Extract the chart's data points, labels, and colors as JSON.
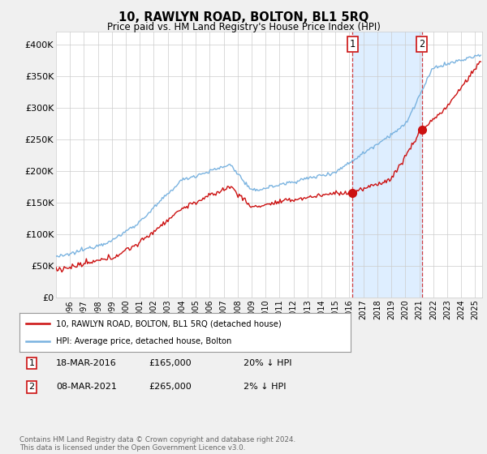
{
  "title": "10, RAWLYN ROAD, BOLTON, BL1 5RQ",
  "subtitle": "Price paid vs. HM Land Registry's House Price Index (HPI)",
  "ylabel_ticks": [
    "£0",
    "£50K",
    "£100K",
    "£150K",
    "£200K",
    "£250K",
    "£300K",
    "£350K",
    "£400K"
  ],
  "ylim": [
    0,
    420000
  ],
  "xlim_start": 1995.0,
  "xlim_end": 2025.5,
  "hpi_color": "#7ab3e0",
  "price_color": "#cc1111",
  "shade_color": "#deeeff",
  "marker1_date": 2016.21,
  "marker1_price": 165000,
  "marker2_date": 2021.18,
  "marker2_price": 265000,
  "legend_label1": "10, RAWLYN ROAD, BOLTON, BL1 5RQ (detached house)",
  "legend_label2": "HPI: Average price, detached house, Bolton",
  "footer": "Contains HM Land Registry data © Crown copyright and database right 2024.\nThis data is licensed under the Open Government Licence v3.0.",
  "background_color": "#f0f0f0",
  "plot_bg_color": "#ffffff"
}
